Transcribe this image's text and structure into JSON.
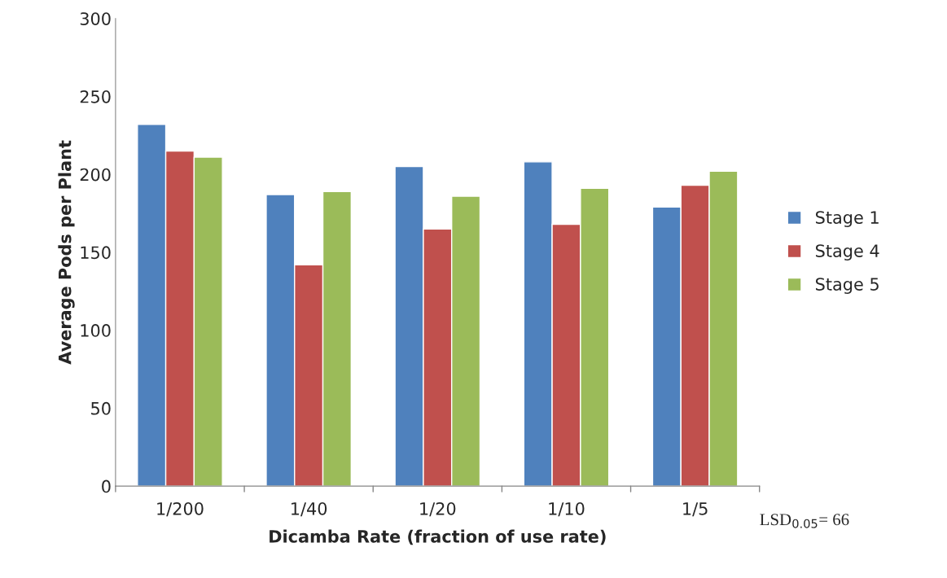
{
  "chart_data": {
    "type": "bar",
    "xlabel": "Dicamba Rate (fraction of use rate)",
    "ylabel": "Average Pods per Plant",
    "categories": [
      "1/200",
      "1/40",
      "1/20",
      "1/10",
      "1/5"
    ],
    "series": [
      {
        "name": "Stage 1",
        "color": "#4f81bd",
        "values": [
          232,
          187,
          205,
          208,
          179
        ]
      },
      {
        "name": "Stage 4",
        "color": "#c0504d",
        "values": [
          215,
          142,
          165,
          168,
          193
        ]
      },
      {
        "name": "Stage 5",
        "color": "#9bbb59",
        "values": [
          211,
          189,
          186,
          191,
          202
        ]
      }
    ],
    "ylim": [
      0,
      300
    ],
    "yticks": [
      0,
      50,
      100,
      150,
      200,
      250,
      300
    ],
    "grid": false,
    "legend": "right",
    "annotations": [
      "LSD$_{0.05}$= 66"
    ]
  }
}
